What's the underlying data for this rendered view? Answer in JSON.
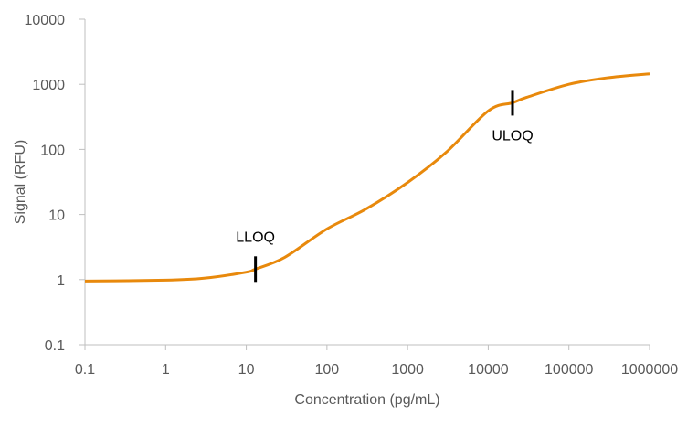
{
  "chart_data": {
    "type": "line",
    "title": "",
    "xlabel": "Concentration (pg/mL)",
    "ylabel": "Signal (RFU)",
    "xscale": "log",
    "yscale": "log",
    "xlim": [
      0.1,
      1000000
    ],
    "ylim": [
      0.1,
      10000
    ],
    "xticks": [
      "0.1",
      "1",
      "10",
      "100",
      "1000",
      "10000",
      "100000",
      "1000000"
    ],
    "yticks": [
      "0.1",
      "1",
      "10",
      "100",
      "1000",
      "10000"
    ],
    "grid": false,
    "legend": "none",
    "series": [
      {
        "color": "#E8890C",
        "x": [
          0.1,
          1,
          3,
          10,
          13,
          30,
          100,
          300,
          1000,
          3000,
          10000,
          20000,
          30000,
          100000,
          300000,
          1000000
        ],
        "y": [
          0.95,
          0.98,
          1.05,
          1.3,
          1.45,
          2.2,
          6,
          12,
          31,
          90,
          390,
          520,
          630,
          1000,
          1260,
          1450
        ]
      }
    ],
    "annotations": [
      {
        "label": "LLOQ",
        "x": 13,
        "y": 1.45
      },
      {
        "label": "ULOQ",
        "x": 20000,
        "y": 520
      }
    ]
  }
}
